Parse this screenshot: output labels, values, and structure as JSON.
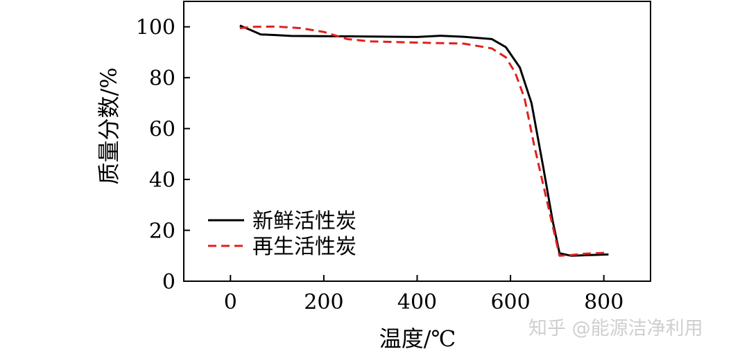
{
  "chart_data": {
    "type": "line",
    "xlabel": "温度/℃",
    "ylabel": "质量分数/%",
    "xlim": [
      -100,
      900
    ],
    "ylim": [
      0,
      110
    ],
    "xticks": [
      0,
      200,
      400,
      600,
      800
    ],
    "yticks": [
      0,
      20,
      40,
      60,
      80,
      100
    ],
    "grid": false,
    "legend_position": "lower-left",
    "series": [
      {
        "name": "新鲜活性炭",
        "color": "#000000",
        "style": "solid",
        "x": [
          20,
          40,
          65,
          100,
          130,
          200,
          300,
          400,
          450,
          500,
          560,
          590,
          620,
          645,
          670,
          690,
          705,
          730,
          760,
          810
        ],
        "y": [
          100.5,
          99,
          97,
          96.7,
          96.4,
          96.3,
          96.2,
          96,
          96.5,
          96.1,
          95.2,
          92,
          84,
          70,
          45,
          24,
          11,
          10,
          10.2,
          10.5
        ]
      },
      {
        "name": "再生活性炭",
        "color": "#e0201b",
        "style": "dashed",
        "x": [
          20,
          50,
          100,
          150,
          200,
          250,
          300,
          400,
          500,
          560,
          590,
          610,
          630,
          650,
          670,
          690,
          705,
          730,
          760,
          810
        ],
        "y": [
          99.5,
          100,
          100.1,
          99.5,
          98,
          95.2,
          94.3,
          93.8,
          93.4,
          91.5,
          88,
          82,
          72,
          54,
          38,
          22,
          10,
          10.3,
          10.8,
          11.2
        ]
      }
    ]
  },
  "watermark": "知乎 @能源洁净利用"
}
